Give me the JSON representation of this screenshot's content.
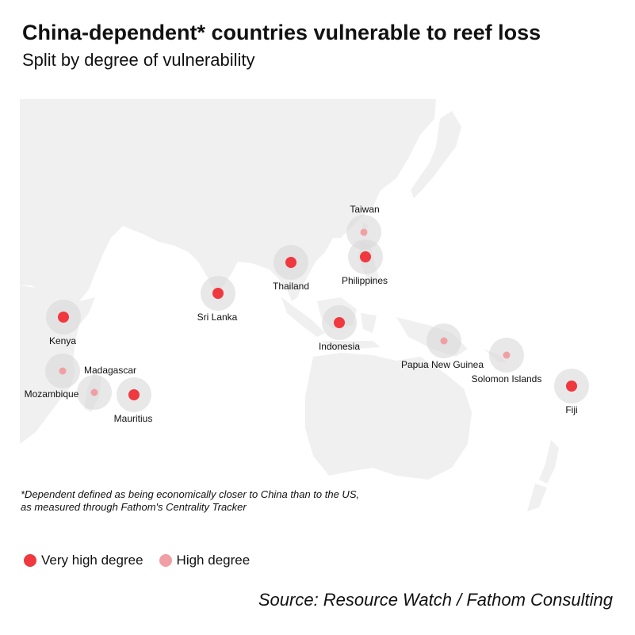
{
  "header": {
    "title": "China-dependent* countries vulnerable to reef loss",
    "subtitle": "Split by degree of vulnerability"
  },
  "colors": {
    "very_high": "#f0383f",
    "high": "#f0a0a4",
    "halo": "#d9d9d9",
    "land": "#f0f0f0"
  },
  "countries": [
    {
      "name": "Taiwan",
      "degree": "high"
    },
    {
      "name": "Philippines",
      "degree": "very_high"
    },
    {
      "name": "Thailand",
      "degree": "very_high"
    },
    {
      "name": "Sri Lanka",
      "degree": "very_high"
    },
    {
      "name": "Indonesia",
      "degree": "very_high"
    },
    {
      "name": "Kenya",
      "degree": "very_high"
    },
    {
      "name": "Madagascar",
      "degree": "high"
    },
    {
      "name": "Mozambique",
      "degree": "high"
    },
    {
      "name": "Mauritius",
      "degree": "very_high"
    },
    {
      "name": "Papua New Guinea",
      "degree": "high"
    },
    {
      "name": "Solomon Islands",
      "degree": "high"
    },
    {
      "name": "Fiji",
      "degree": "very_high"
    }
  ],
  "footnote": {
    "line1": "*Dependent defined as being economically closer to China than to the US,",
    "line2": "as measured through Fathom's Centrality Tracker"
  },
  "legend": {
    "very_high_label": "Very high degree",
    "high_label": "High degree"
  },
  "source": "Source: Resource Watch / Fathom Consulting"
}
